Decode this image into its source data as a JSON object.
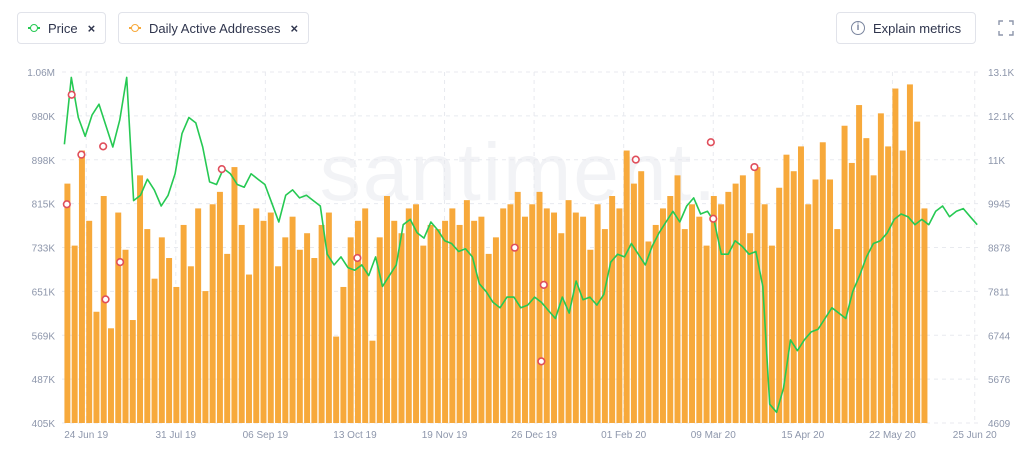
{
  "legend": {
    "price": {
      "label": "Price",
      "color": "#26c953",
      "remove_icon": "close-icon"
    },
    "daily_active_addresses": {
      "label": "Daily Active Addresses",
      "color": "#f7a93b",
      "remove_icon": "close-icon"
    }
  },
  "toolbar": {
    "explain_label": "Explain metrics",
    "explain_icon": "info-icon",
    "fullscreen_icon": "fullscreen-icon"
  },
  "watermark": ".santiment.",
  "chart_data": {
    "type": "bar",
    "x_tick_labels": [
      "24 Jun 19",
      "31 Jul 19",
      "06 Sep 19",
      "13 Oct 19",
      "19 Nov 19",
      "26 Dec 19",
      "01 Feb 20",
      "09 Mar 20",
      "15 Apr 20",
      "22 May 20",
      "25 Jun 20"
    ],
    "y_left_tick_labels": [
      "1.06M",
      "980K",
      "898K",
      "815K",
      "733K",
      "651K",
      "569K",
      "487K",
      "405K"
    ],
    "y_right_tick_labels": [
      "13.1K",
      "12.1K",
      "11K",
      "9945",
      "8878",
      "7811",
      "6744",
      "5676",
      "4609"
    ],
    "y_left_range": [
      405000,
      1060000
    ],
    "y_right_range": [
      4609,
      13100
    ],
    "grid": true,
    "series": [
      {
        "name": "Daily Active Addresses",
        "kind": "bar",
        "axis": "right",
        "sample_every_days": 3,
        "values": [
          10400,
          8900,
          11200,
          9500,
          7300,
          10100,
          6900,
          9700,
          8800,
          7100,
          10600,
          9300,
          8100,
          9100,
          8600,
          7900,
          9400,
          8400,
          9800,
          7800,
          9900,
          10200,
          8700,
          10800,
          9400,
          8200,
          9800,
          9500,
          9700,
          8400,
          9100,
          9600,
          8800,
          9200,
          8600,
          9400,
          9700,
          6700,
          7900,
          9100,
          9500,
          9800,
          6600,
          9100,
          10100,
          9500,
          9200,
          9800,
          9900,
          8900,
          9400,
          9300,
          9500,
          9800,
          9400,
          10000,
          9500,
          9600,
          8700,
          9100,
          9800,
          9900,
          10200,
          9600,
          9900,
          10200,
          9800,
          9700,
          9200,
          10000,
          9700,
          9600,
          8800,
          9900,
          9300,
          10100,
          9800,
          11200,
          10400,
          10700,
          9000,
          9400,
          9800,
          10100,
          10600,
          9300,
          9900,
          9600,
          8900,
          10100,
          9900,
          10200,
          10400,
          10600,
          9200,
          10800,
          9900,
          8900,
          10300,
          11100,
          10700,
          11300,
          9900,
          10500,
          11400,
          10500,
          9300,
          11800,
          10900,
          12300,
          11500,
          10600,
          12100,
          11300,
          12700,
          11200,
          12800,
          11900,
          9800
        ]
      },
      {
        "name": "Price",
        "kind": "line",
        "axis": "left",
        "values": [
          925000,
          1050000,
          975000,
          940000,
          980000,
          1000000,
          960000,
          920000,
          970000,
          1050000,
          820000,
          830000,
          860000,
          840000,
          810000,
          830000,
          870000,
          945000,
          975000,
          965000,
          920000,
          855000,
          850000,
          880000,
          870000,
          850000,
          845000,
          870000,
          860000,
          850000,
          815000,
          780000,
          830000,
          840000,
          825000,
          830000,
          820000,
          810000,
          720000,
          700000,
          715000,
          695000,
          690000,
          700000,
          680000,
          715000,
          660000,
          680000,
          700000,
          775000,
          785000,
          760000,
          750000,
          780000,
          765000,
          745000,
          740000,
          725000,
          730000,
          715000,
          665000,
          650000,
          630000,
          620000,
          640000,
          640000,
          620000,
          625000,
          640000,
          630000,
          615000,
          600000,
          640000,
          610000,
          670000,
          635000,
          640000,
          625000,
          645000,
          705000,
          720000,
          715000,
          740000,
          720000,
          700000,
          735000,
          760000,
          780000,
          800000,
          780000,
          810000,
          825000,
          795000,
          800000,
          780000,
          720000,
          720000,
          745000,
          735000,
          720000,
          725000,
          660000,
          440000,
          425000,
          470000,
          560000,
          540000,
          560000,
          575000,
          580000,
          600000,
          620000,
          610000,
          600000,
          650000,
          680000,
          715000,
          740000,
          745000,
          760000,
          785000,
          795000,
          790000,
          775000,
          785000,
          775000,
          800000,
          810000,
          790000,
          800000,
          805000,
          790000,
          775000
        ]
      }
    ],
    "signal_markers_right_axis": [
      {
        "x_date": "2019-06-16",
        "value": 9900
      },
      {
        "x_date": "2019-06-18",
        "value": 12550
      },
      {
        "x_date": "2019-06-22",
        "value": 11100
      },
      {
        "x_date": "2019-07-01",
        "value": 11300
      },
      {
        "x_date": "2019-07-02",
        "value": 7600
      },
      {
        "x_date": "2019-07-08",
        "value": 8500
      },
      {
        "x_date": "2019-08-19",
        "value": 10750
      },
      {
        "x_date": "2019-10-14",
        "value": 8600
      },
      {
        "x_date": "2019-12-18",
        "value": 8850
      },
      {
        "x_date": "2019-12-29",
        "value": 6100
      },
      {
        "x_date": "2019-12-30",
        "value": 7950
      },
      {
        "x_date": "2020-02-06",
        "value": 10980
      },
      {
        "x_date": "2020-03-08",
        "value": 11400
      },
      {
        "x_date": "2020-03-09",
        "value": 9550
      },
      {
        "x_date": "2020-03-26",
        "value": 10800
      }
    ]
  }
}
